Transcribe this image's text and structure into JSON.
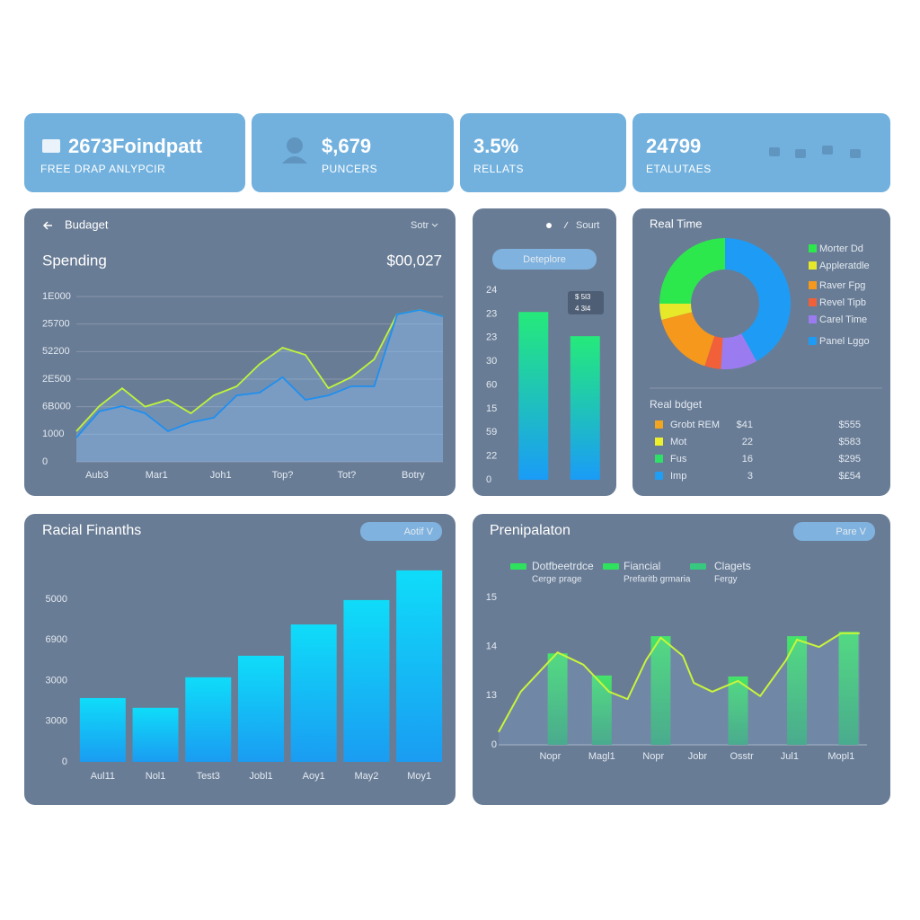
{
  "kpis": [
    {
      "value": "2673Foindpatt",
      "label": "FREE DRAP ANLYPCIR"
    },
    {
      "value": "$,679",
      "label": "PUNCERS"
    },
    {
      "value": "3.5%",
      "label": "RELLATS"
    },
    {
      "value": "24799",
      "label": "ETALUTAES"
    }
  ],
  "chart_data": [
    {
      "type": "line",
      "header": "Budaget",
      "menu": "Sotr",
      "title": "Spending",
      "total": "$00,027",
      "x": [
        0,
        1,
        2,
        3,
        4,
        5,
        6,
        7,
        8,
        9,
        10,
        11,
        12,
        13,
        14,
        15,
        16
      ],
      "xlim": [
        0,
        16
      ],
      "xticks": [
        {
          "value": 0.9,
          "label": "Aub3"
        },
        {
          "value": 3.5,
          "label": "Mar1"
        },
        {
          "value": 6.3,
          "label": "Joh1"
        },
        {
          "value": 9,
          "label": "Top?"
        },
        {
          "value": 11.8,
          "label": "Tot?"
        },
        {
          "value": 14.7,
          "label": "Botry"
        }
      ],
      "ylim": [
        0,
        6000
      ],
      "yticks": [
        {
          "value": 6000,
          "label": "1E000"
        },
        {
          "value": 5000,
          "label": "25700"
        },
        {
          "value": 4000,
          "label": "52200"
        },
        {
          "value": 3000,
          "label": "2E500"
        },
        {
          "value": 2000,
          "label": "6B000"
        },
        1000,
        0
      ],
      "grid": true,
      "series": [
        {
          "color": "#bff53a",
          "values": [
            1110,
            2020,
            2670,
            2000,
            2250,
            1760,
            2410,
            2740,
            3550,
            4140,
            3880,
            2670,
            3070,
            3720,
            5350,
            5510,
            5280
          ]
        },
        {
          "color": "#1e8ff0",
          "values": [
            880,
            1830,
            2020,
            1760,
            1110,
            1430,
            1600,
            2410,
            2510,
            3070,
            2250,
            2410,
            2740,
            2740,
            5350,
            5510,
            5280
          ]
        }
      ]
    },
    {
      "type": "bar",
      "header": "Sourt",
      "button": "Deteplore",
      "categories": [
        null,
        null
      ],
      "values": [
        7.08,
        6.06
      ],
      "colors": [
        "#25ea7a",
        "#1a9cf7"
      ],
      "ylim": [
        0,
        8
      ],
      "yticks": [
        0,
        {
          "value": 1,
          "label": "22"
        },
        {
          "value": 2,
          "label": "59"
        },
        {
          "value": 3,
          "label": "15"
        },
        {
          "value": 4,
          "label": "60"
        },
        {
          "value": 5,
          "label": "30"
        },
        {
          "value": 6,
          "label": "23"
        },
        {
          "value": 7,
          "label": "23"
        },
        {
          "value": 8,
          "label": "24"
        }
      ],
      "notes": [
        "$ 5l3",
        "4 3l4"
      ]
    },
    {
      "type": "pie",
      "title": "Real Time",
      "donut": true,
      "categories": [
        "Morter Dd",
        "Appleratdle",
        "Raver Fpg",
        "Revel Tipb",
        "Carel Time",
        "Panel Lggo"
      ],
      "values": [
        25,
        4,
        16,
        4,
        9,
        42
      ],
      "colors": [
        "#2de84d",
        "#e8e82a",
        "#f5981c",
        "#f2603a",
        "#9b7cf0",
        "#1e9cf5"
      ],
      "table": {
        "title": "Real bdget",
        "rows": [
          {
            "color": "#f2a51e",
            "cells": [
              "Grobt REM",
              "$41",
              "$555"
            ]
          },
          {
            "color": "#eef02c",
            "cells": [
              "Mot",
              "22",
              "$583"
            ]
          },
          {
            "color": "#2fe068",
            "cells": [
              "Fus",
              "16",
              "$295"
            ]
          },
          {
            "color": "#1e9ef5",
            "cells": [
              "Imp",
              "3",
              "$£54"
            ]
          }
        ]
      }
    },
    {
      "type": "bar",
      "title": "Racial Finanths",
      "button": "Aotif V",
      "categories": [
        "Aul11",
        "Nol1",
        "Test3",
        "Jobl1",
        "Aoy1",
        "May2",
        "Moy1"
      ],
      "values": [
        1.57,
        1.33,
        2.08,
        2.61,
        3.38,
        3.98,
        4.71
      ],
      "colors": [
        "#0fdcf9",
        "#1a9cf2"
      ],
      "ylim": [
        0,
        4.8
      ],
      "yticks": [
        0,
        {
          "value": 1,
          "label": "3000"
        },
        {
          "value": 2,
          "label": "3000"
        },
        {
          "value": 3,
          "label": "6900"
        },
        {
          "value": 4,
          "label": "5000"
        }
      ]
    },
    {
      "type": "combo",
      "title": "Prenipalaton",
      "button": "Pare V",
      "legend": [
        {
          "name": "Dotfbeetrdce",
          "note": "Cerge prage",
          "color": "#2fe25e"
        },
        {
          "name": "Fiancial",
          "note": "Prefaritb grmaria",
          "color": "#2fe25e"
        },
        {
          "name": "Clagets",
          "note": "Fergy",
          "color": "#37c97f"
        }
      ],
      "xlim": [
        0,
        10
      ],
      "xticks": [
        {
          "value": 1.4,
          "label": "Nopr"
        },
        {
          "value": 2.8,
          "label": "Magl1"
        },
        {
          "value": 4.2,
          "label": "Nopr"
        },
        {
          "value": 5.4,
          "label": "Jobr"
        },
        {
          "value": 6.6,
          "label": "Osstr"
        },
        {
          "value": 7.9,
          "label": "Jul1"
        },
        {
          "value": 9.3,
          "label": "Mopl1"
        }
      ],
      "ylim": [
        0,
        3.1
      ],
      "yticks": [
        0,
        {
          "value": 1,
          "label": "13"
        },
        {
          "value": 2,
          "label": "14"
        },
        {
          "value": 3,
          "label": "15"
        }
      ],
      "series": [
        {
          "type": "bar",
          "colors": [
            "#45e46a",
            "#3aa978"
          ],
          "x": [
            1.6,
            2.8,
            4.4,
            6.5,
            8.1,
            9.5
          ],
          "values": [
            1.86,
            1.41,
            2.21,
            1.39,
            2.21,
            2.3
          ]
        },
        {
          "type": "line",
          "color": "#c9f53b",
          "x": [
            0,
            0.6,
            1.6,
            2.3,
            3.0,
            3.5,
            4.0,
            4.4,
            5.0,
            5.3,
            5.8,
            6.5,
            7.1,
            7.8,
            8.1,
            8.7,
            9.3,
            9.8
          ],
          "values": [
            0.26,
            1.08,
            1.88,
            1.63,
            1.08,
            0.93,
            1.72,
            2.18,
            1.81,
            1.26,
            1.08,
            1.3,
            0.99,
            1.72,
            2.14,
            1.99,
            2.27,
            2.27
          ]
        }
      ]
    }
  ]
}
